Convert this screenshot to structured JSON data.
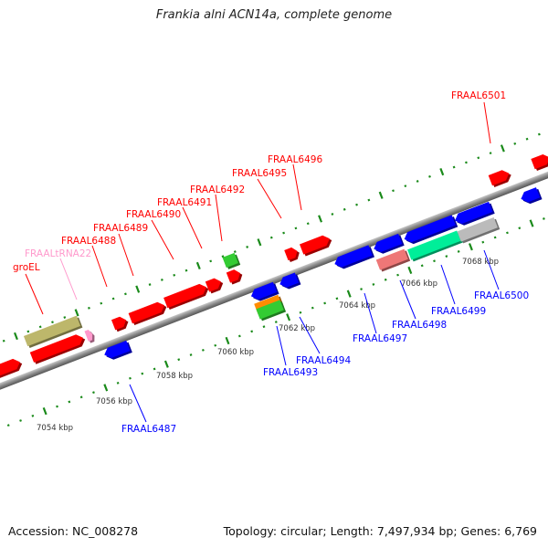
{
  "title": "Frankia alni ACN14a, complete genome",
  "footer": {
    "accession": "Accession: NC_008278",
    "summary": "Topology: circular; Length: 7,497,934 bp; Genes: 6,769"
  },
  "colors": {
    "forward": "#ff0000",
    "reverse": "#0000ff",
    "trna": "#ff99cc",
    "backbone": "#888888",
    "ticks": "#1a8a1a"
  },
  "kbp_labels": [
    "7054 kbp",
    "7056 kbp",
    "7058 kbp",
    "7060 kbp",
    "7062 kbp",
    "7064 kbp",
    "7066 kbp",
    "7068 kbp"
  ],
  "top_labels": [
    "groEL",
    "FRAALtRNA22",
    "FRAAL6488",
    "FRAAL6489",
    "FRAAL6490",
    "FRAAL6491",
    "FRAAL6492",
    "FRAAL6495",
    "FRAAL6496",
    "FRAAL6501"
  ],
  "bottom_labels": [
    "FRAAL6487",
    "FRAAL6493",
    "FRAAL6494",
    "FRAAL6497",
    "FRAAL6498",
    "FRAAL6499",
    "FRAAL6500"
  ]
}
